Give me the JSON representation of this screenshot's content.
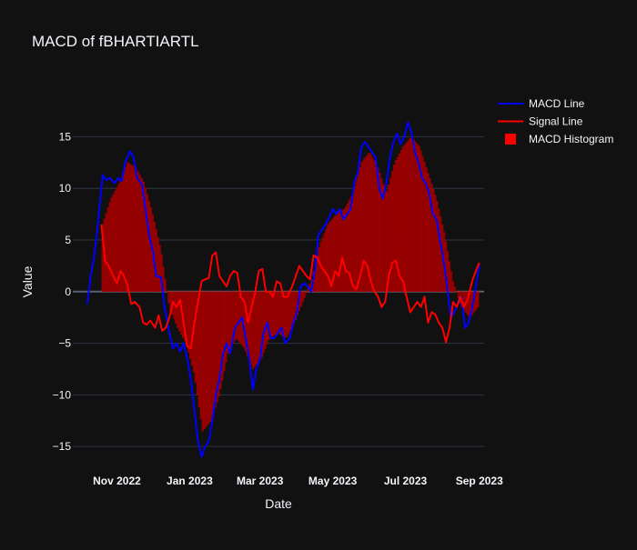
{
  "chart_data": {
    "type": "line",
    "title": "MACD of fBHARTIARTL",
    "xlabel": "Date",
    "ylabel": "Value",
    "x_range": [
      "2022-09-25",
      "2023-09-05"
    ],
    "y_range": [
      -17.1,
      21.2
    ],
    "y_ticks": [
      -15,
      -10,
      -5,
      0,
      5,
      10,
      15
    ],
    "x_ticks": [
      {
        "date": "2022-11-01",
        "label": "Nov 2022"
      },
      {
        "date": "2023-01-01",
        "label": "Jan 2023"
      },
      {
        "date": "2023-03-01",
        "label": "Mar 2023"
      },
      {
        "date": "2023-05-01",
        "label": "May 2023"
      },
      {
        "date": "2023-07-01",
        "label": "Jul 2023"
      },
      {
        "date": "2023-09-01",
        "label": "Sep 2023"
      }
    ],
    "grid": true,
    "legend_position": "top-right",
    "series": [
      {
        "name": "MACD Line",
        "kind": "line",
        "color": "#0000ff",
        "points": [
          [
            "2022-10-07",
            -1.2
          ],
          [
            "2022-10-10",
            1.5
          ],
          [
            "2022-10-13",
            3.5
          ],
          [
            "2022-10-16",
            6.5
          ],
          [
            "2022-10-20",
            11.3
          ],
          [
            "2022-10-23",
            10.8
          ],
          [
            "2022-10-26",
            11.0
          ],
          [
            "2022-10-30",
            10.5
          ],
          [
            "2022-11-02",
            11.0
          ],
          [
            "2022-11-05",
            10.7
          ],
          [
            "2022-11-08",
            12.5
          ],
          [
            "2022-11-12",
            13.6
          ],
          [
            "2022-11-15",
            13.0
          ],
          [
            "2022-11-18",
            11.0
          ],
          [
            "2022-11-22",
            10.4
          ],
          [
            "2022-11-25",
            8.0
          ],
          [
            "2022-11-28",
            5.5
          ],
          [
            "2022-12-01",
            4.0
          ],
          [
            "2022-12-04",
            1.5
          ],
          [
            "2022-12-08",
            1.4
          ],
          [
            "2022-12-11",
            -1.5
          ],
          [
            "2022-12-15",
            -4.0
          ],
          [
            "2022-12-18",
            -5.5
          ],
          [
            "2022-12-21",
            -5.0
          ],
          [
            "2022-12-24",
            -5.8
          ],
          [
            "2022-12-27",
            -5.0
          ],
          [
            "2022-12-30",
            -6.5
          ],
          [
            "2023-01-02",
            -8.5
          ],
          [
            "2023-01-05",
            -11.5
          ],
          [
            "2023-01-08",
            -14.5
          ],
          [
            "2023-01-11",
            -16.0
          ],
          [
            "2023-01-14",
            -15.0
          ],
          [
            "2023-01-17",
            -14.5
          ],
          [
            "2023-01-20",
            -12.5
          ],
          [
            "2023-01-23",
            -10.0
          ],
          [
            "2023-01-26",
            -8.5
          ],
          [
            "2023-01-29",
            -6.0
          ],
          [
            "2023-02-01",
            -5.0
          ],
          [
            "2023-02-04",
            -6.0
          ],
          [
            "2023-02-08",
            -3.5
          ],
          [
            "2023-02-11",
            -3.0
          ],
          [
            "2023-02-14",
            -2.5
          ],
          [
            "2023-02-17",
            -4.5
          ],
          [
            "2023-02-20",
            -6.5
          ],
          [
            "2023-02-23",
            -9.5
          ],
          [
            "2023-02-26",
            -7.5
          ],
          [
            "2023-03-01",
            -6.5
          ],
          [
            "2023-03-04",
            -4.0
          ],
          [
            "2023-03-07",
            -3.0
          ],
          [
            "2023-03-10",
            -4.5
          ],
          [
            "2023-03-13",
            -4.5
          ],
          [
            "2023-03-16",
            -4.0
          ],
          [
            "2023-03-19",
            -3.5
          ],
          [
            "2023-03-22",
            -5.0
          ],
          [
            "2023-03-26",
            -4.5
          ],
          [
            "2023-03-29",
            -3.0
          ],
          [
            "2023-04-01",
            -2.0
          ],
          [
            "2023-04-04",
            0.5
          ],
          [
            "2023-04-07",
            0.8
          ],
          [
            "2023-04-10",
            0.5
          ],
          [
            "2023-04-13",
            0.0
          ],
          [
            "2023-04-16",
            2.0
          ],
          [
            "2023-04-19",
            5.5
          ],
          [
            "2023-04-22",
            6.0
          ],
          [
            "2023-04-25",
            6.5
          ],
          [
            "2023-04-28",
            7.2
          ],
          [
            "2023-05-01",
            8.0
          ],
          [
            "2023-05-04",
            7.5
          ],
          [
            "2023-05-07",
            8.0
          ],
          [
            "2023-05-10",
            7.0
          ],
          [
            "2023-05-13",
            7.5
          ],
          [
            "2023-05-16",
            8.0
          ],
          [
            "2023-05-19",
            10.5
          ],
          [
            "2023-05-22",
            11.5
          ],
          [
            "2023-05-25",
            14.0
          ],
          [
            "2023-05-28",
            14.5
          ],
          [
            "2023-05-31",
            14.0
          ],
          [
            "2023-06-03",
            13.5
          ],
          [
            "2023-06-06",
            13.0
          ],
          [
            "2023-06-09",
            10.0
          ],
          [
            "2023-06-12",
            9.0
          ],
          [
            "2023-06-15",
            10.5
          ],
          [
            "2023-06-18",
            13.0
          ],
          [
            "2023-06-21",
            14.5
          ],
          [
            "2023-06-24",
            15.3
          ],
          [
            "2023-06-27",
            14.3
          ],
          [
            "2023-06-30",
            15.0
          ],
          [
            "2023-07-03",
            16.4
          ],
          [
            "2023-07-06",
            15.5
          ],
          [
            "2023-07-09",
            13.5
          ],
          [
            "2023-07-12",
            12.5
          ],
          [
            "2023-07-15",
            11.0
          ],
          [
            "2023-07-18",
            10.5
          ],
          [
            "2023-07-21",
            9.5
          ],
          [
            "2023-07-24",
            7.5
          ],
          [
            "2023-07-27",
            7.0
          ],
          [
            "2023-07-30",
            5.0
          ],
          [
            "2023-08-02",
            3.0
          ],
          [
            "2023-08-05",
            0.5
          ],
          [
            "2023-08-08",
            -2.5
          ],
          [
            "2023-08-11",
            -2.0
          ],
          [
            "2023-08-14",
            -1.0
          ],
          [
            "2023-08-17",
            -0.5
          ],
          [
            "2023-08-20",
            -3.5
          ],
          [
            "2023-08-23",
            -3.0
          ],
          [
            "2023-08-26",
            -1.5
          ],
          [
            "2023-08-29",
            0.5
          ],
          [
            "2023-09-01",
            2.5
          ]
        ]
      },
      {
        "name": "Signal Line",
        "kind": "line",
        "color": "#ff0000",
        "points": [
          [
            "2022-10-19",
            6.5
          ],
          [
            "2022-10-22",
            3.0
          ],
          [
            "2022-10-25",
            2.5
          ],
          [
            "2022-10-29",
            1.5
          ],
          [
            "2022-11-01",
            0.8
          ],
          [
            "2022-11-04",
            2.0
          ],
          [
            "2022-11-07",
            1.5
          ],
          [
            "2022-11-10",
            0.5
          ],
          [
            "2022-11-13",
            -1.2
          ],
          [
            "2022-11-16",
            -1.0
          ],
          [
            "2022-11-20",
            -1.5
          ],
          [
            "2022-11-23",
            -3.0
          ],
          [
            "2022-11-26",
            -3.2
          ],
          [
            "2022-11-29",
            -2.8
          ],
          [
            "2022-12-03",
            -3.5
          ],
          [
            "2022-12-06",
            -2.3
          ],
          [
            "2022-12-09",
            -3.8
          ],
          [
            "2022-12-12",
            -3.5
          ],
          [
            "2022-12-15",
            -2.5
          ],
          [
            "2022-12-18",
            -1.0
          ],
          [
            "2022-12-21",
            -1.5
          ],
          [
            "2022-12-24",
            -0.8
          ],
          [
            "2022-12-27",
            -3.0
          ],
          [
            "2022-12-30",
            -5.3
          ],
          [
            "2023-01-02",
            -5.5
          ],
          [
            "2023-01-05",
            -3.0
          ],
          [
            "2023-01-08",
            -1.0
          ],
          [
            "2023-01-11",
            1.0
          ],
          [
            "2023-01-14",
            1.2
          ],
          [
            "2023-01-17",
            1.3
          ],
          [
            "2023-01-20",
            3.5
          ],
          [
            "2023-01-23",
            3.8
          ],
          [
            "2023-01-26",
            1.5
          ],
          [
            "2023-01-29",
            1.0
          ],
          [
            "2023-02-01",
            0.5
          ],
          [
            "2023-02-04",
            1.5
          ],
          [
            "2023-02-07",
            2.0
          ],
          [
            "2023-02-10",
            1.8
          ],
          [
            "2023-02-13",
            -0.5
          ],
          [
            "2023-02-16",
            -1.0
          ],
          [
            "2023-02-19",
            -3.0
          ],
          [
            "2023-02-22",
            -1.5
          ],
          [
            "2023-02-25",
            0.0
          ],
          [
            "2023-02-28",
            2.0
          ],
          [
            "2023-03-03",
            2.2
          ],
          [
            "2023-03-06",
            0.0
          ],
          [
            "2023-03-09",
            0.0
          ],
          [
            "2023-03-12",
            -0.5
          ],
          [
            "2023-03-15",
            1.0
          ],
          [
            "2023-03-18",
            0.8
          ],
          [
            "2023-03-21",
            -0.5
          ],
          [
            "2023-03-24",
            -0.5
          ],
          [
            "2023-03-28",
            0.5
          ],
          [
            "2023-03-31",
            1.5
          ],
          [
            "2023-04-03",
            2.5
          ],
          [
            "2023-04-06",
            2.0
          ],
          [
            "2023-04-09",
            1.5
          ],
          [
            "2023-04-12",
            1.2
          ],
          [
            "2023-04-15",
            3.5
          ],
          [
            "2023-04-18",
            3.3
          ],
          [
            "2023-04-21",
            2.5
          ],
          [
            "2023-04-24",
            2.0
          ],
          [
            "2023-04-27",
            1.5
          ],
          [
            "2023-04-30",
            0.5
          ],
          [
            "2023-05-03",
            2.0
          ],
          [
            "2023-05-06",
            1.5
          ],
          [
            "2023-05-09",
            3.3
          ],
          [
            "2023-05-12",
            2.0
          ],
          [
            "2023-05-15",
            1.8
          ],
          [
            "2023-05-18",
            0.5
          ],
          [
            "2023-05-21",
            0.2
          ],
          [
            "2023-05-24",
            1.5
          ],
          [
            "2023-05-27",
            3.0
          ],
          [
            "2023-05-30",
            2.5
          ],
          [
            "2023-06-02",
            1.0
          ],
          [
            "2023-06-05",
            0.0
          ],
          [
            "2023-06-08",
            -0.5
          ],
          [
            "2023-06-11",
            -1.5
          ],
          [
            "2023-06-14",
            -1.0
          ],
          [
            "2023-06-17",
            1.5
          ],
          [
            "2023-06-20",
            2.8
          ],
          [
            "2023-06-23",
            3.0
          ],
          [
            "2023-06-26",
            1.5
          ],
          [
            "2023-06-29",
            1.0
          ],
          [
            "2023-07-02",
            -0.5
          ],
          [
            "2023-07-05",
            -2.0
          ],
          [
            "2023-07-08",
            -1.5
          ],
          [
            "2023-07-11",
            -1.0
          ],
          [
            "2023-07-14",
            -1.5
          ],
          [
            "2023-07-17",
            -0.5
          ],
          [
            "2023-07-20",
            -3.0
          ],
          [
            "2023-07-23",
            -2.0
          ],
          [
            "2023-07-26",
            -2.2
          ],
          [
            "2023-07-29",
            -3.0
          ],
          [
            "2023-08-01",
            -3.5
          ],
          [
            "2023-08-04",
            -4.9
          ],
          [
            "2023-08-07",
            -3.5
          ],
          [
            "2023-08-10",
            -1.0
          ],
          [
            "2023-08-13",
            -1.5
          ],
          [
            "2023-08-16",
            -0.5
          ],
          [
            "2023-08-19",
            -1.5
          ],
          [
            "2023-08-22",
            -0.8
          ],
          [
            "2023-08-26",
            1.0
          ],
          [
            "2023-08-29",
            2.0
          ],
          [
            "2023-09-01",
            2.8
          ]
        ]
      },
      {
        "name": "MACD Histogram",
        "kind": "bar",
        "color": "#ff0000",
        "points": [
          [
            "2022-10-20",
            6.5
          ],
          [
            "2022-10-27",
            9.0
          ],
          [
            "2022-11-03",
            10.5
          ],
          [
            "2022-11-10",
            12.5
          ],
          [
            "2022-11-17",
            12.0
          ],
          [
            "2022-11-24",
            10.5
          ],
          [
            "2022-12-01",
            7.5
          ],
          [
            "2022-12-08",
            4.0
          ],
          [
            "2022-12-15",
            -1.5
          ],
          [
            "2022-12-22",
            -3.5
          ],
          [
            "2022-12-29",
            -5.0
          ],
          [
            "2023-01-05",
            -8.0
          ],
          [
            "2023-01-12",
            -13.5
          ],
          [
            "2023-01-19",
            -12.5
          ],
          [
            "2023-01-26",
            -10.0
          ],
          [
            "2023-02-02",
            -6.0
          ],
          [
            "2023-02-09",
            -4.5
          ],
          [
            "2023-02-16",
            -5.5
          ],
          [
            "2023-02-23",
            -7.5
          ],
          [
            "2023-03-02",
            -6.5
          ],
          [
            "2023-03-09",
            -4.5
          ],
          [
            "2023-03-16",
            -4.0
          ],
          [
            "2023-03-23",
            -4.5
          ],
          [
            "2023-03-30",
            -3.0
          ],
          [
            "2023-04-06",
            -1.0
          ],
          [
            "2023-04-13",
            1.0
          ],
          [
            "2023-04-20",
            4.5
          ],
          [
            "2023-04-27",
            6.5
          ],
          [
            "2023-05-04",
            7.5
          ],
          [
            "2023-05-11",
            8.0
          ],
          [
            "2023-05-18",
            9.5
          ],
          [
            "2023-05-25",
            12.5
          ],
          [
            "2023-06-01",
            13.5
          ],
          [
            "2023-06-08",
            12.0
          ],
          [
            "2023-06-15",
            9.5
          ],
          [
            "2023-06-22",
            12.5
          ],
          [
            "2023-06-29",
            14.0
          ],
          [
            "2023-07-06",
            15.0
          ],
          [
            "2023-07-13",
            14.0
          ],
          [
            "2023-07-20",
            11.5
          ],
          [
            "2023-07-27",
            9.0
          ],
          [
            "2023-08-03",
            5.5
          ],
          [
            "2023-08-10",
            1.0
          ],
          [
            "2023-08-17",
            -1.5
          ],
          [
            "2023-08-24",
            -2.5
          ],
          [
            "2023-08-31",
            -1.5
          ]
        ]
      }
    ]
  }
}
